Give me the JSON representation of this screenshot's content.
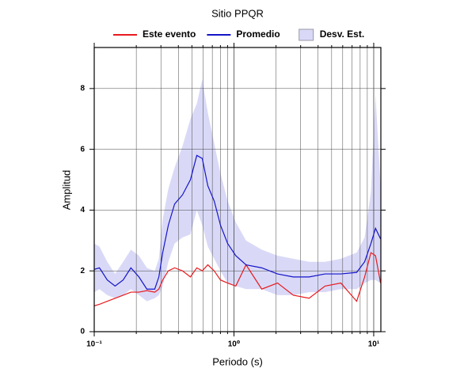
{
  "chart_data": {
    "type": "line",
    "title": "Sitio PPQR",
    "x_label": "Periodo (s)",
    "y_label": "Amplitud",
    "x_scale": "log",
    "grid": true,
    "xlim": [
      0.1,
      11.25
    ],
    "ylim": [
      0,
      9.35
    ],
    "xticks": [
      {
        "value": 0.1,
        "label": "10⁻¹"
      },
      {
        "value": 1,
        "label": "10⁰"
      },
      {
        "value": 10,
        "label": "10¹"
      }
    ],
    "yticks": [
      0,
      2,
      4,
      6,
      8
    ],
    "x": [
      0.1,
      0.109,
      0.124,
      0.141,
      0.161,
      0.183,
      0.209,
      0.238,
      0.271,
      0.29,
      0.309,
      0.339,
      0.376,
      0.428,
      0.488,
      0.542,
      0.593,
      0.65,
      0.722,
      0.801,
      0.901,
      1.03,
      1.22,
      1.58,
      2.05,
      2.66,
      3.45,
      4.48,
      5.82,
      7.55,
      8.61,
      9.55,
      10.3,
      11.2
    ],
    "band": {
      "name": "Desv. Est.",
      "color": "#d9d9f7",
      "upper": [
        2.9,
        2.8,
        2.3,
        1.9,
        2.3,
        2.7,
        2.5,
        2.1,
        2.0,
        2.4,
        3.7,
        4.7,
        5.4,
        6.1,
        7.0,
        7.5,
        8.3,
        7.2,
        6.2,
        5.2,
        4.3,
        3.6,
        3.0,
        2.7,
        2.5,
        2.4,
        2.3,
        2.3,
        2.4,
        2.6,
        3.1,
        4.6,
        7.8,
        4.8
      ],
      "lower": [
        1.3,
        1.4,
        1.2,
        1.1,
        1.2,
        1.4,
        1.2,
        1.0,
        1.1,
        1.2,
        1.5,
        2.3,
        2.9,
        3.1,
        3.2,
        4.0,
        3.5,
        2.8,
        2.4,
        2.0,
        1.6,
        1.5,
        1.4,
        1.4,
        1.2,
        1.2,
        1.3,
        1.3,
        1.4,
        1.4,
        1.6,
        1.7,
        1.7,
        1.6
      ]
    },
    "series": [
      {
        "name": "Este evento",
        "color": "#e8191c",
        "values": [
          0.85,
          0.9,
          1.0,
          1.1,
          1.2,
          1.3,
          1.3,
          1.35,
          1.3,
          1.4,
          1.7,
          2.0,
          2.1,
          2.0,
          1.8,
          2.1,
          2.0,
          2.2,
          2.0,
          1.7,
          1.6,
          1.5,
          2.2,
          1.4,
          1.6,
          1.2,
          1.1,
          1.5,
          1.6,
          1.0,
          1.8,
          2.6,
          2.5,
          1.6
        ]
      },
      {
        "name": "Promedio",
        "color": "#1414c8",
        "values": [
          2.05,
          2.1,
          1.7,
          1.5,
          1.7,
          2.1,
          1.8,
          1.4,
          1.4,
          1.8,
          2.6,
          3.5,
          4.2,
          4.5,
          5.0,
          5.8,
          5.7,
          4.8,
          4.3,
          3.5,
          2.9,
          2.5,
          2.2,
          2.1,
          1.9,
          1.8,
          1.8,
          1.9,
          1.9,
          1.95,
          2.3,
          2.9,
          3.4,
          3.05
        ]
      }
    ]
  }
}
